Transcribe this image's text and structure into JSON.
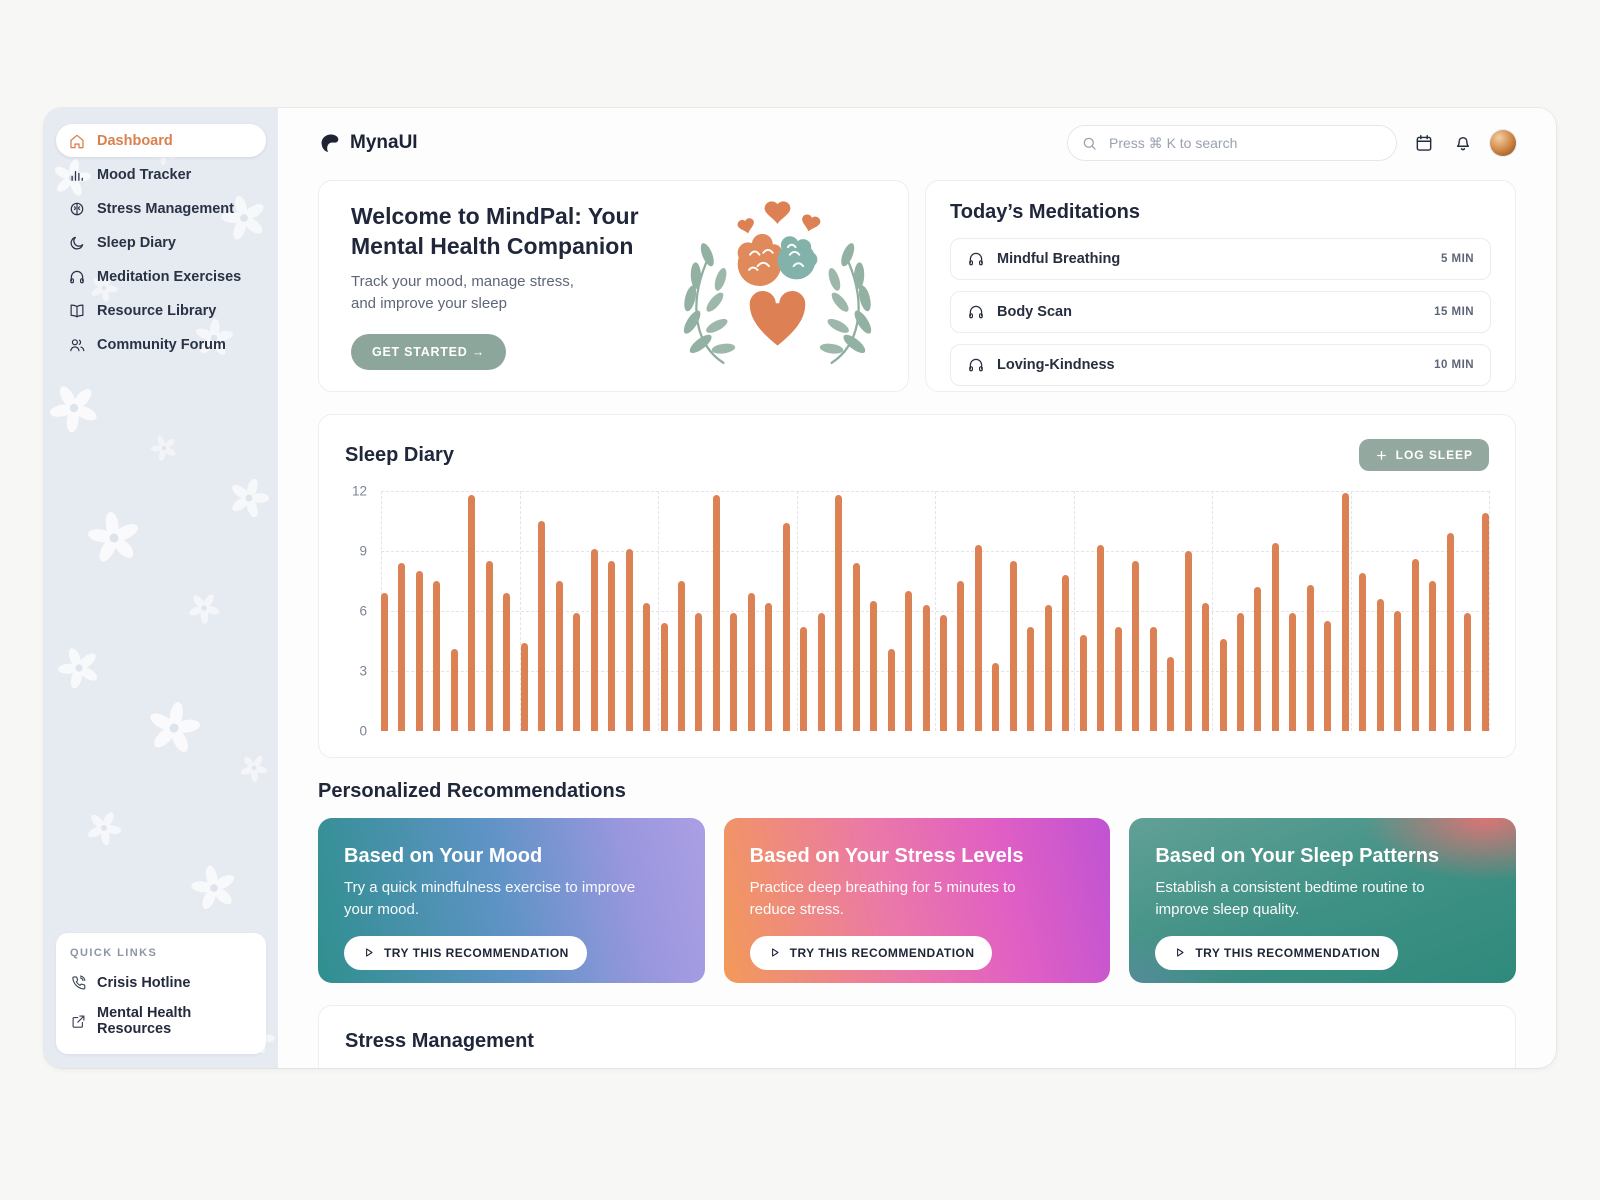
{
  "app": {
    "brand": "MynaUI"
  },
  "header": {
    "search_placeholder": "Press ⌘ K to search"
  },
  "sidebar": {
    "items": [
      {
        "label": "Dashboard",
        "icon": "home",
        "active": true
      },
      {
        "label": "Mood Tracker",
        "icon": "bar-chart",
        "active": false
      },
      {
        "label": "Stress Management",
        "icon": "brain",
        "active": false
      },
      {
        "label": "Sleep Diary",
        "icon": "moon",
        "active": false
      },
      {
        "label": "Meditation Exercises",
        "icon": "headphones",
        "active": false
      },
      {
        "label": "Resource Library",
        "icon": "book",
        "active": false
      },
      {
        "label": "Community Forum",
        "icon": "users",
        "active": false
      }
    ],
    "quick_links": {
      "title": "QUICK LINKS",
      "items": [
        {
          "label": "Crisis Hotline",
          "icon": "phone"
        },
        {
          "label": "Mental Health Resources",
          "icon": "external-link"
        }
      ]
    }
  },
  "welcome": {
    "title": "Welcome to MindPal: Your Mental Health Companion",
    "subtitle": "Track your mood, manage stress, and improve your sleep",
    "cta": "GET STARTED →"
  },
  "meditations": {
    "title": "Today’s Meditations",
    "items": [
      {
        "name": "Mindful Breathing",
        "duration": "5 MIN"
      },
      {
        "name": "Body Scan",
        "duration": "15 MIN"
      },
      {
        "name": "Loving-Kindness",
        "duration": "10 MIN"
      }
    ]
  },
  "sleep_diary": {
    "title": "Sleep Diary",
    "log_button": "LOG SLEEP"
  },
  "chart_data": {
    "type": "bar",
    "title": "Sleep Diary",
    "xlabel": "",
    "ylabel": "",
    "ylim": [
      0,
      12
    ],
    "yticks": [
      "12",
      "9",
      "6",
      "3",
      "0"
    ],
    "grid": true,
    "bar_color": "#dc8154",
    "values": [
      6.9,
      8.4,
      8.0,
      7.5,
      4.1,
      11.8,
      8.5,
      6.9,
      4.4,
      10.5,
      7.5,
      5.9,
      9.1,
      8.5,
      9.1,
      6.4,
      5.4,
      7.5,
      5.9,
      11.8,
      5.9,
      6.9,
      6.4,
      10.4,
      5.2,
      5.9,
      11.8,
      8.4,
      6.5,
      4.1,
      7.0,
      6.3,
      5.8,
      7.5,
      9.3,
      3.4,
      8.5,
      5.2,
      6.3,
      7.8,
      4.8,
      9.3,
      5.2,
      8.5,
      5.2,
      3.7,
      9.0,
      6.4,
      4.6,
      5.9,
      7.2,
      9.4,
      5.9,
      7.3,
      5.5,
      11.9,
      7.9,
      6.6,
      6.0,
      8.6,
      7.5,
      9.9,
      5.9,
      10.9
    ]
  },
  "recommendations": {
    "heading": "Personalized Recommendations",
    "button_label": "TRY THIS RECOMMENDATION",
    "cards": [
      {
        "title": "Based on Your Mood",
        "body": "Try a quick mindfulness exercise to improve your mood."
      },
      {
        "title": "Based on Your Stress Levels",
        "body": "Practice deep breathing for 5 minutes to reduce stress."
      },
      {
        "title": "Based on Your Sleep Patterns",
        "body": "Establish a consistent bedtime routine to improve sleep quality."
      }
    ]
  },
  "stress_section": {
    "title": "Stress Management"
  },
  "colors": {
    "accent_orange": "#dc8154",
    "sage_green": "#8ca69b",
    "navy": "#20273a",
    "sidebar_bg": "#e6eaf1"
  }
}
